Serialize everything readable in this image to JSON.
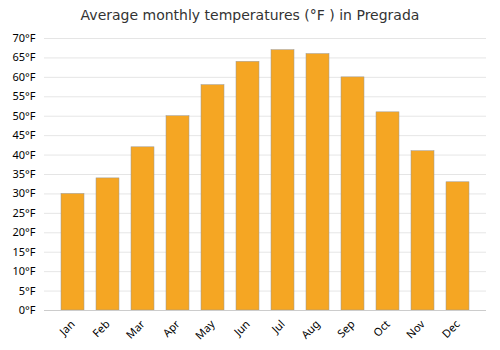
{
  "chart_data": {
    "type": "bar",
    "title": "Average monthly temperatures (°F ) in Pregrada",
    "categories": [
      "Jan",
      "Feb",
      "Mar",
      "Apr",
      "May",
      "Jun",
      "Jul",
      "Aug",
      "Sep",
      "Oct",
      "Nov",
      "Dec"
    ],
    "values": [
      30,
      34,
      42,
      50,
      58,
      64,
      67,
      66,
      60,
      51,
      41,
      33
    ],
    "color": "#F5A623",
    "ylim": [
      0,
      70
    ],
    "yticks": [
      {
        "value": 0,
        "label": "0°F"
      },
      {
        "value": 5,
        "label": "5°F"
      },
      {
        "value": 10,
        "label": "10°F"
      },
      {
        "value": 15,
        "label": "15°F"
      },
      {
        "value": 20,
        "label": "20°F"
      },
      {
        "value": 25,
        "label": "25°F"
      },
      {
        "value": 30,
        "label": "30°F"
      },
      {
        "value": 35,
        "label": "35°F"
      },
      {
        "value": 40,
        "label": "40°F"
      },
      {
        "value": 45,
        "label": "45°F"
      },
      {
        "value": 50,
        "label": "50°F"
      },
      {
        "value": 55,
        "label": "55°F"
      },
      {
        "value": 60,
        "label": "60°F"
      },
      {
        "value": 65,
        "label": "65°F"
      },
      {
        "value": 70,
        "label": "70°F"
      }
    ],
    "grid": true
  }
}
